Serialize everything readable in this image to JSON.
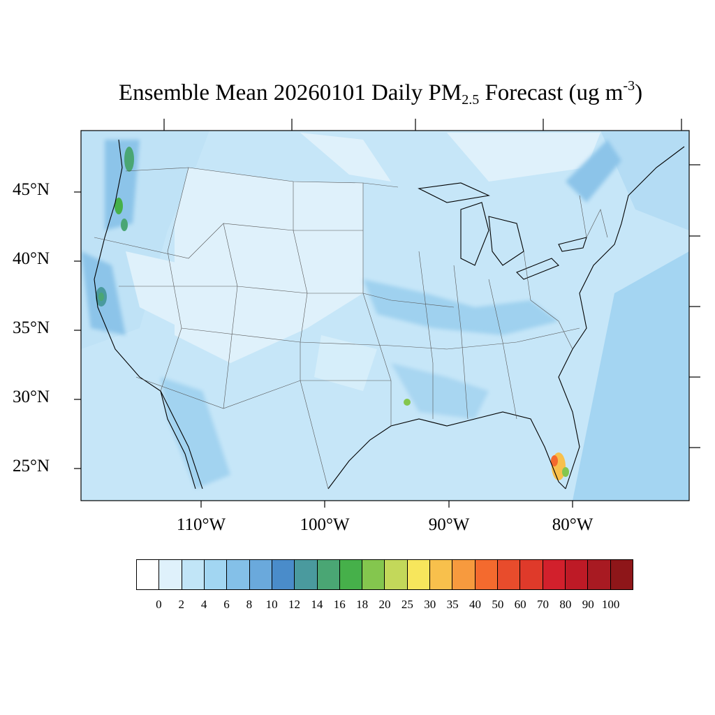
{
  "title": {
    "prefix": "Ensemble Mean 20260101 Daily PM",
    "subscript": "2.5",
    "middle": " Forecast (ug m",
    "superscript": "-3",
    "suffix": ")"
  },
  "map": {
    "projection": "Lambert Conformal",
    "region": "Contiguous United States",
    "background_color": "#cfe9f7",
    "latitude_labels": [
      "45°N",
      "40°N",
      "35°N",
      "30°N",
      "25°N"
    ],
    "longitude_labels": [
      "110°W",
      "100°W",
      "90°W",
      "80°W"
    ],
    "hotspots": [
      {
        "region": "Puget Sound, WA",
        "level": "12-20"
      },
      {
        "region": "Willamette Valley, OR",
        "level": "12-20"
      },
      {
        "region": "San Francisco Bay Area, CA",
        "level": "12-16"
      },
      {
        "region": "South Florida",
        "level": "25-50"
      },
      {
        "region": "Southern Louisiana",
        "level": "16-20"
      }
    ]
  },
  "colorbar": {
    "colors": [
      "#ffffff",
      "#dff1fb",
      "#c1e5f7",
      "#a2d6f2",
      "#84c0e8",
      "#6aa9dc",
      "#4a8cca",
      "#4a9a9e",
      "#4aa674",
      "#46b04a",
      "#84c64e",
      "#c3d85a",
      "#f7e65c",
      "#f8c04c",
      "#f79a3e",
      "#f46a2e",
      "#e84c2c",
      "#df3a2a",
      "#d2202c",
      "#be1a26",
      "#a81a22",
      "#8e1619"
    ],
    "labels": [
      "0",
      "2",
      "4",
      "6",
      "8",
      "10",
      "12",
      "14",
      "16",
      "18",
      "20",
      "25",
      "30",
      "35",
      "40",
      "50",
      "60",
      "70",
      "80",
      "90",
      "100"
    ]
  }
}
